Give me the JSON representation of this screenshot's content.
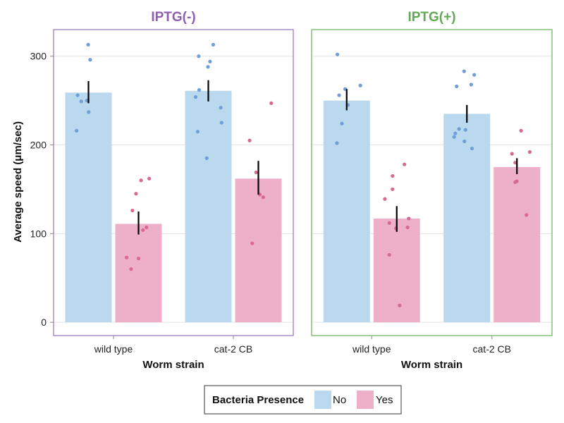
{
  "chart_data": {
    "type": "bar",
    "ylabel": "Average speed (μm/sec)",
    "ylim": [
      -15,
      330
    ],
    "yticks": [
      0,
      100,
      200,
      300
    ],
    "grid": true,
    "colors": {
      "No": "#bad9ee",
      "Yes": "#eeb0c8",
      "point_No": "#6f9fd6",
      "point_Yes": "#d76a92",
      "frame_left": "#a285c2",
      "frame_right": "#7dbb6e",
      "title_left": "#8e5fb0",
      "title_right": "#63a855"
    },
    "legend": {
      "title": "Bacteria Presence",
      "position": "bottom",
      "entries": [
        "No",
        "Yes"
      ]
    },
    "panels": [
      {
        "title": "IPTG(-)",
        "xlabel": "Worm strain",
        "categories": [
          "wild type",
          "cat-2 CB"
        ],
        "series": [
          {
            "name": "No",
            "values": [
              259,
              261
            ],
            "error": [
              [
                247,
                272
              ],
              [
                249,
                273
              ]
            ],
            "points": [
              [
                313,
                296,
                256,
                249,
                250,
                237,
                216
              ],
              [
                313,
                300,
                294,
                288,
                262,
                254,
                242,
                225,
                215,
                185
              ]
            ]
          },
          {
            "name": "Yes",
            "values": [
              111,
              162
            ],
            "error": [
              [
                99,
                125
              ],
              [
                144,
                182
              ]
            ],
            "points": [
              [
                162,
                160,
                145,
                126,
                107,
                104,
                73,
                72,
                60
              ],
              [
                247,
                205,
                169,
                144,
                141,
                89
              ]
            ]
          }
        ]
      },
      {
        "title": "IPTG(+)",
        "xlabel": "Worm strain",
        "categories": [
          "wild type",
          "cat-2 CB"
        ],
        "series": [
          {
            "name": "No",
            "values": [
              250,
              235
            ],
            "error": [
              [
                239,
                263
              ],
              [
                225,
                245
              ]
            ],
            "points": [
              [
                302,
                267,
                263,
                256,
                245,
                224,
                202
              ],
              [
                283,
                279,
                268,
                266,
                218,
                217,
                213,
                209,
                204,
                196
              ]
            ]
          },
          {
            "name": "Yes",
            "values": [
              117,
              175
            ],
            "error": [
              [
                102,
                131
              ],
              [
                167,
                185
              ]
            ],
            "points": [
              [
                178,
                165,
                150,
                139,
                117,
                112,
                107,
                106,
                76,
                19
              ],
              [
                216,
                192,
                190,
                180,
                159,
                158,
                121
              ]
            ]
          }
        ]
      }
    ]
  }
}
